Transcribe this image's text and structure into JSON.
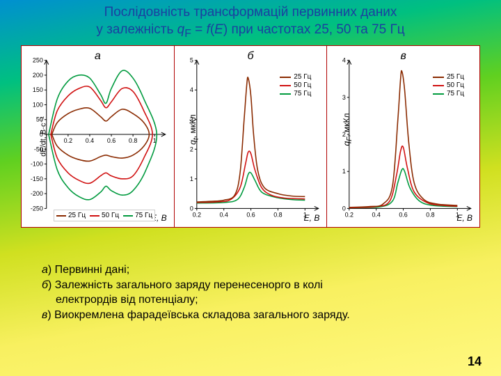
{
  "title": {
    "line1": "Послідовність трансформацій первинних даних",
    "line2_prefix": "у залежність ",
    "q": "q",
    "subF": "F",
    "eq": " = ",
    "f": "f",
    "paren_open": "(",
    "E": "E",
    "paren_close": ")",
    "line2_suffix": " при частотах 25, 50 та 75 Гц"
  },
  "colors": {
    "s25": "#8a2a00",
    "s50": "#d01010",
    "s75": "#009a3e",
    "axis": "#000000",
    "panel_border": "#b00000"
  },
  "legend": {
    "hz25": "25 Гц",
    "hz50": "50 Гц",
    "hz75": "75 Гц"
  },
  "panelA": {
    "label": "а",
    "ylabel": "dE/dt, В·с⁻¹",
    "xlabel": "E, В",
    "xlim": [
      0,
      1.1
    ],
    "ylim": [
      -250,
      250
    ],
    "xticks": [
      0,
      0.2,
      0.4,
      0.6,
      0.8,
      1
    ],
    "yticks": [
      -250,
      -200,
      -150,
      -100,
      -50,
      0,
      50,
      100,
      150,
      200,
      250
    ],
    "series": {
      "s25": [
        [
          0.05,
          0
        ],
        [
          0.1,
          40
        ],
        [
          0.2,
          70
        ],
        [
          0.3,
          85
        ],
        [
          0.4,
          88
        ],
        [
          0.5,
          60
        ],
        [
          0.55,
          45
        ],
        [
          0.6,
          60
        ],
        [
          0.7,
          85
        ],
        [
          0.8,
          70
        ],
        [
          0.9,
          40
        ],
        [
          0.95,
          0
        ],
        [
          0.9,
          -40
        ],
        [
          0.8,
          -70
        ],
        [
          0.7,
          -80
        ],
        [
          0.6,
          -75
        ],
        [
          0.55,
          -70
        ],
        [
          0.5,
          -75
        ],
        [
          0.4,
          -90
        ],
        [
          0.3,
          -85
        ],
        [
          0.2,
          -70
        ],
        [
          0.1,
          -40
        ],
        [
          0.05,
          0
        ]
      ],
      "s50": [
        [
          0.04,
          0
        ],
        [
          0.1,
          80
        ],
        [
          0.2,
          130
        ],
        [
          0.3,
          155
        ],
        [
          0.4,
          160
        ],
        [
          0.5,
          115
        ],
        [
          0.55,
          90
        ],
        [
          0.6,
          110
        ],
        [
          0.7,
          155
        ],
        [
          0.8,
          145
        ],
        [
          0.9,
          80
        ],
        [
          0.98,
          0
        ],
        [
          0.9,
          -80
        ],
        [
          0.8,
          -140
        ],
        [
          0.7,
          -150
        ],
        [
          0.6,
          -140
        ],
        [
          0.55,
          -130
        ],
        [
          0.5,
          -140
        ],
        [
          0.4,
          -165
        ],
        [
          0.3,
          -155
        ],
        [
          0.2,
          -130
        ],
        [
          0.1,
          -80
        ],
        [
          0.04,
          0
        ]
      ],
      "s75": [
        [
          0.02,
          0
        ],
        [
          0.1,
          120
        ],
        [
          0.2,
          180
        ],
        [
          0.3,
          200
        ],
        [
          0.4,
          190
        ],
        [
          0.5,
          135
        ],
        [
          0.55,
          105
        ],
        [
          0.6,
          155
        ],
        [
          0.7,
          215
        ],
        [
          0.8,
          190
        ],
        [
          0.9,
          120
        ],
        [
          1.02,
          0
        ],
        [
          0.92,
          -120
        ],
        [
          0.8,
          -190
        ],
        [
          0.7,
          -205
        ],
        [
          0.6,
          -190
        ],
        [
          0.55,
          -175
        ],
        [
          0.5,
          -195
        ],
        [
          0.4,
          -220
        ],
        [
          0.3,
          -210
        ],
        [
          0.2,
          -180
        ],
        [
          0.1,
          -120
        ],
        [
          0.02,
          0
        ]
      ]
    }
  },
  "panelB": {
    "label": "б",
    "ylabel": "qᵢ, мкКл",
    "xlabel": "E, В",
    "xlim": [
      0.2,
      1.1
    ],
    "ylim": [
      0,
      5
    ],
    "xticks": [
      0.2,
      0.4,
      0.6,
      0.8,
      1
    ],
    "yticks": [
      0,
      1,
      2,
      3,
      4,
      5
    ],
    "series": {
      "s25": [
        [
          0.2,
          0.22
        ],
        [
          0.3,
          0.24
        ],
        [
          0.4,
          0.28
        ],
        [
          0.48,
          0.45
        ],
        [
          0.52,
          1.2
        ],
        [
          0.55,
          3.0
        ],
        [
          0.57,
          4.2
        ],
        [
          0.58,
          4.4
        ],
        [
          0.6,
          3.8
        ],
        [
          0.62,
          2.5
        ],
        [
          0.65,
          1.3
        ],
        [
          0.7,
          0.7
        ],
        [
          0.8,
          0.5
        ],
        [
          0.9,
          0.42
        ],
        [
          1.0,
          0.4
        ]
      ],
      "s50": [
        [
          0.2,
          0.2
        ],
        [
          0.35,
          0.22
        ],
        [
          0.45,
          0.3
        ],
        [
          0.52,
          0.7
        ],
        [
          0.56,
          1.5
        ],
        [
          0.58,
          1.9
        ],
        [
          0.6,
          1.85
        ],
        [
          0.63,
          1.3
        ],
        [
          0.68,
          0.7
        ],
        [
          0.75,
          0.45
        ],
        [
          0.85,
          0.35
        ],
        [
          1.0,
          0.32
        ]
      ],
      "s75": [
        [
          0.2,
          0.18
        ],
        [
          0.4,
          0.2
        ],
        [
          0.5,
          0.3
        ],
        [
          0.55,
          0.7
        ],
        [
          0.58,
          1.15
        ],
        [
          0.6,
          1.2
        ],
        [
          0.63,
          0.95
        ],
        [
          0.68,
          0.55
        ],
        [
          0.78,
          0.38
        ],
        [
          0.9,
          0.3
        ],
        [
          1.0,
          0.28
        ]
      ]
    }
  },
  "panelC": {
    "label": "в",
    "ylabel": "qF, мкКл",
    "xlabel": "E, В",
    "xlim": [
      0.2,
      1.1
    ],
    "ylim": [
      0,
      4
    ],
    "xticks": [
      0.2,
      0.4,
      0.6,
      0.8,
      1
    ],
    "yticks": [
      0,
      1,
      2,
      3,
      4
    ],
    "series": {
      "s25": [
        [
          0.2,
          0.03
        ],
        [
          0.35,
          0.05
        ],
        [
          0.45,
          0.12
        ],
        [
          0.52,
          0.6
        ],
        [
          0.56,
          2.4
        ],
        [
          0.58,
          3.5
        ],
        [
          0.59,
          3.7
        ],
        [
          0.61,
          3.2
        ],
        [
          0.64,
          1.8
        ],
        [
          0.68,
          0.7
        ],
        [
          0.75,
          0.25
        ],
        [
          0.85,
          0.12
        ],
        [
          1.0,
          0.08
        ]
      ],
      "s50": [
        [
          0.2,
          0.02
        ],
        [
          0.4,
          0.05
        ],
        [
          0.5,
          0.2
        ],
        [
          0.55,
          0.9
        ],
        [
          0.58,
          1.55
        ],
        [
          0.6,
          1.65
        ],
        [
          0.63,
          1.1
        ],
        [
          0.68,
          0.45
        ],
        [
          0.78,
          0.15
        ],
        [
          0.9,
          0.08
        ],
        [
          1.0,
          0.06
        ]
      ],
      "s75": [
        [
          0.2,
          0.02
        ],
        [
          0.42,
          0.04
        ],
        [
          0.52,
          0.2
        ],
        [
          0.56,
          0.7
        ],
        [
          0.59,
          1.05
        ],
        [
          0.61,
          1.0
        ],
        [
          0.65,
          0.55
        ],
        [
          0.72,
          0.2
        ],
        [
          0.82,
          0.08
        ],
        [
          1.0,
          0.05
        ]
      ]
    }
  },
  "caption": {
    "a_tag": "а",
    "a_text": ") Первинні дані;",
    "b_tag": "б",
    "b_text": ") Залежність загального заряду перенесенорго в колі",
    "b_text2": "електрордів від потенціалу;",
    "c_tag": "в",
    "c_text": ") Виокремлена фарадеївська складова загального заряду."
  },
  "pagenum": "14",
  "line_width": 1.6
}
